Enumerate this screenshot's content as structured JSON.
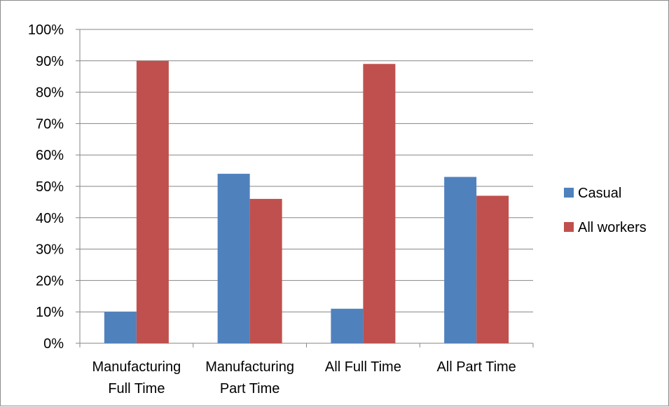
{
  "chart_data": {
    "type": "bar",
    "title": "",
    "xlabel": "",
    "ylabel": "",
    "categories": [
      [
        "Manufacturing",
        "Full Time"
      ],
      [
        "Manufacturing",
        "Part Time"
      ],
      [
        "All Full Time"
      ],
      [
        "All Part Time"
      ]
    ],
    "series": [
      {
        "name": "Casual",
        "values": [
          10,
          54,
          11,
          53
        ],
        "color": "#4f81bd"
      },
      {
        "name": "All workers",
        "values": [
          90,
          46,
          89,
          47
        ],
        "color": "#c0504d"
      }
    ],
    "ylim": [
      0,
      100
    ],
    "yticks": [
      "0%",
      "10%",
      "20%",
      "30%",
      "40%",
      "50%",
      "60%",
      "70%",
      "80%",
      "90%",
      "100%"
    ],
    "grid": true,
    "legend_position": "right",
    "colors": {
      "grid": "#868686",
      "axis": "#868686"
    }
  }
}
